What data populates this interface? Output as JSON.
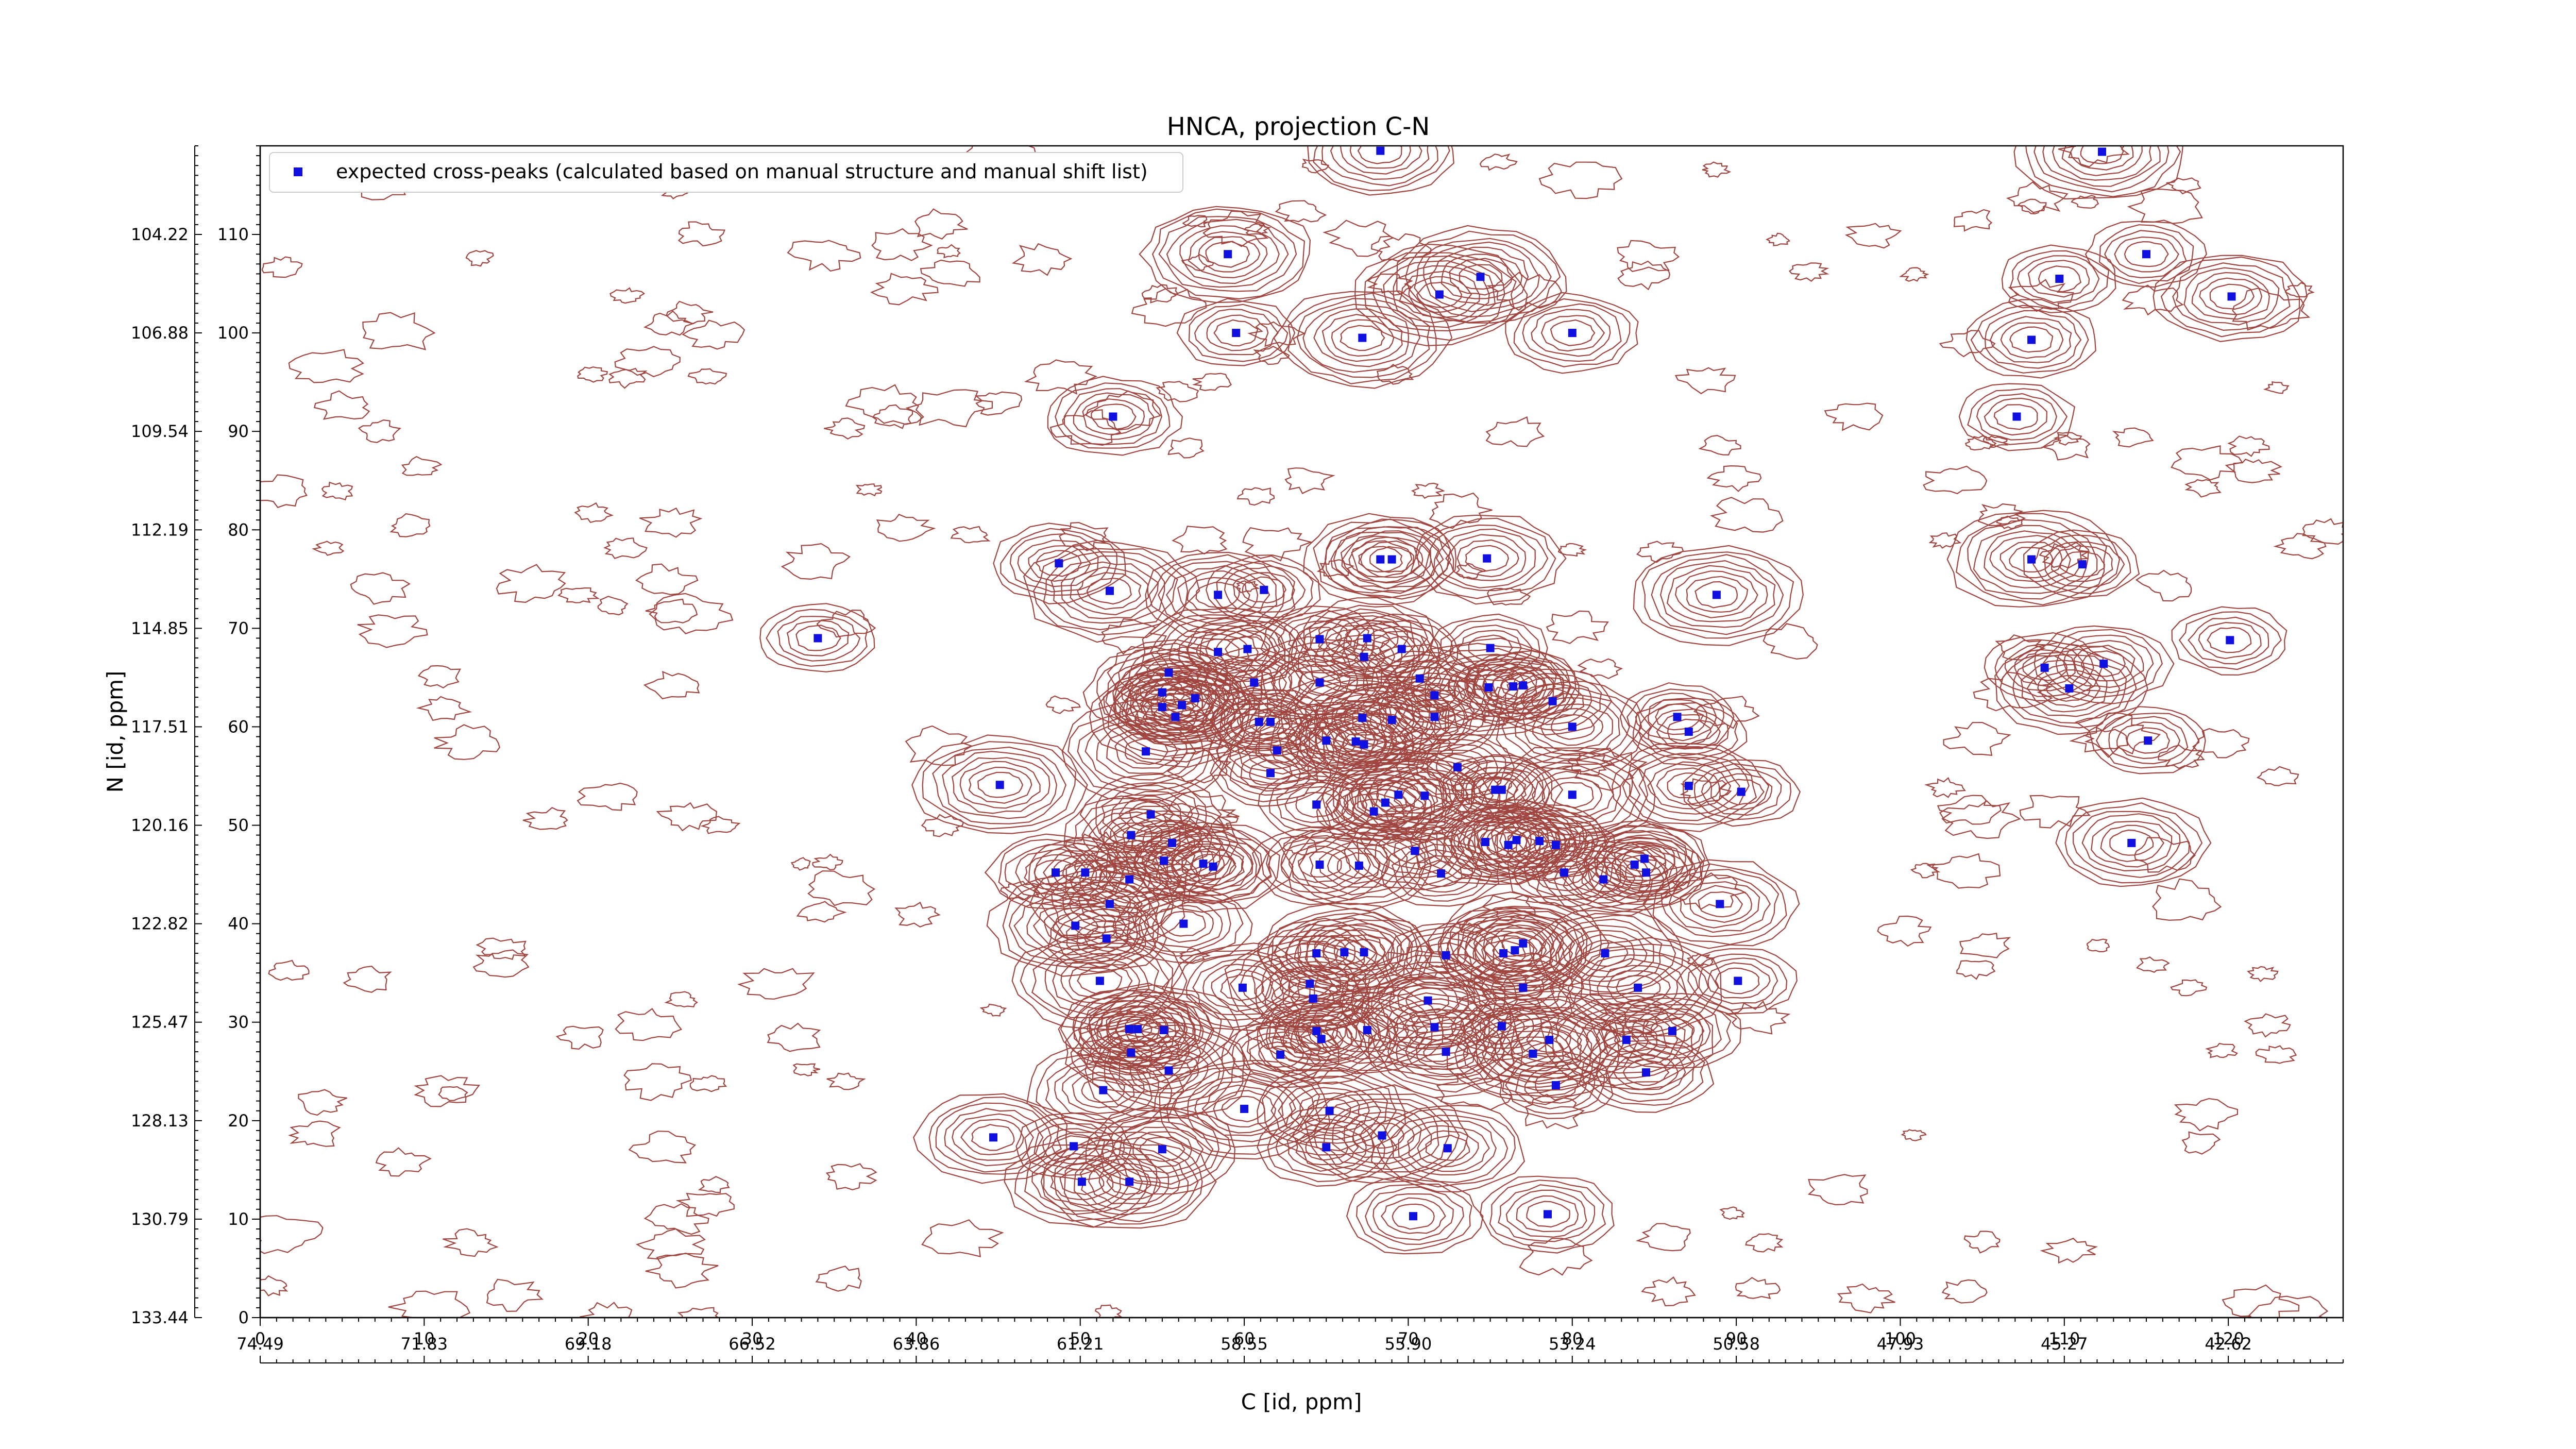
{
  "chart_data": {
    "type": "scatter",
    "title": "HNCA, projection C-N",
    "xlabel": "C [id, ppm]",
    "ylabel": "N [id, ppm]",
    "x_index_ticks": [
      0,
      10,
      20,
      30,
      40,
      50,
      60,
      70,
      80,
      90,
      100,
      110,
      120
    ],
    "x_ppm_ticks": [
      "74.49",
      "71.83",
      "69.18",
      "66.52",
      "63.86",
      "61.21",
      "58.55",
      "55.90",
      "53.24",
      "50.58",
      "47.93",
      "45.27",
      "42.62"
    ],
    "y_index_ticks": [
      0,
      10,
      20,
      30,
      40,
      50,
      60,
      70,
      80,
      90,
      100,
      110
    ],
    "y_ppm_ticks": [
      "133.44",
      "130.79",
      "128.13",
      "125.47",
      "122.82",
      "120.16",
      "117.51",
      "114.85",
      "112.19",
      "109.54",
      "106.88",
      "104.22"
    ],
    "xlim": [
      0,
      127
    ],
    "ylim": [
      0,
      119
    ],
    "legend": {
      "label": "expected cross-peaks (calculated based on manual structure and manual shift list)",
      "position": "upper-left",
      "marker_color": "#1010e0"
    },
    "contour_color": "#a0453f",
    "series": [
      {
        "name": "expected cross-peaks (calculated based on manual structure and manual shift list)",
        "points": [
          [
            68.3,
            118.5
          ],
          [
            112.3,
            118.4
          ],
          [
            59.0,
            108.0
          ],
          [
            74.4,
            105.7
          ],
          [
            71.9,
            103.9
          ],
          [
            109.7,
            105.5
          ],
          [
            115.0,
            108.0
          ],
          [
            120.2,
            103.7
          ],
          [
            59.5,
            100.0
          ],
          [
            67.2,
            99.5
          ],
          [
            80.0,
            100.0
          ],
          [
            108.0,
            99.3
          ],
          [
            52.0,
            91.5
          ],
          [
            107.1,
            91.5
          ],
          [
            48.7,
            76.6
          ],
          [
            51.8,
            73.8
          ],
          [
            58.4,
            73.4
          ],
          [
            61.2,
            73.9
          ],
          [
            68.3,
            77.0
          ],
          [
            69.0,
            77.0
          ],
          [
            74.8,
            77.1
          ],
          [
            88.8,
            73.4
          ],
          [
            108.0,
            77.0
          ],
          [
            111.1,
            76.5
          ],
          [
            34.0,
            69.0
          ],
          [
            120.1,
            68.8
          ],
          [
            58.4,
            67.6
          ],
          [
            60.2,
            67.9
          ],
          [
            64.6,
            68.9
          ],
          [
            67.5,
            69.0
          ],
          [
            67.3,
            67.1
          ],
          [
            69.6,
            67.9
          ],
          [
            75.0,
            68.0
          ],
          [
            55.4,
            65.5
          ],
          [
            60.6,
            64.5
          ],
          [
            55.0,
            63.5
          ],
          [
            64.6,
            64.5
          ],
          [
            70.7,
            64.9
          ],
          [
            74.9,
            64.0
          ],
          [
            76.4,
            64.1
          ],
          [
            77.0,
            64.2
          ],
          [
            56.2,
            62.2
          ],
          [
            57.0,
            62.9
          ],
          [
            60.9,
            60.5
          ],
          [
            61.6,
            60.5
          ],
          [
            67.2,
            60.9
          ],
          [
            69.0,
            60.7
          ],
          [
            71.6,
            63.2
          ],
          [
            71.6,
            61.0
          ],
          [
            78.8,
            62.6
          ],
          [
            80.0,
            60.0
          ],
          [
            55.0,
            62.0
          ],
          [
            55.8,
            61.0
          ],
          [
            108.8,
            66.0
          ],
          [
            110.3,
            63.9
          ],
          [
            112.4,
            66.4
          ],
          [
            86.4,
            61.0
          ],
          [
            87.1,
            59.5
          ],
          [
            115.1,
            58.6
          ],
          [
            54.0,
            57.5
          ],
          [
            62.0,
            57.6
          ],
          [
            61.6,
            55.3
          ],
          [
            65.0,
            58.6
          ],
          [
            66.8,
            58.5
          ],
          [
            67.3,
            58.2
          ],
          [
            45.1,
            54.1
          ],
          [
            71.0,
            53.0
          ],
          [
            73.0,
            55.9
          ],
          [
            75.3,
            53.6
          ],
          [
            75.7,
            53.6
          ],
          [
            80.0,
            53.1
          ],
          [
            87.1,
            54.0
          ],
          [
            90.3,
            53.4
          ],
          [
            54.3,
            51.1
          ],
          [
            64.4,
            52.1
          ],
          [
            68.6,
            52.3
          ],
          [
            69.4,
            53.1
          ],
          [
            67.9,
            51.4
          ],
          [
            55.6,
            48.2
          ],
          [
            53.1,
            49.0
          ],
          [
            74.7,
            48.3
          ],
          [
            76.1,
            48.0
          ],
          [
            76.6,
            48.5
          ],
          [
            78.0,
            48.4
          ],
          [
            79.0,
            48.0
          ],
          [
            83.8,
            46.0
          ],
          [
            114.1,
            48.2
          ],
          [
            70.4,
            47.4
          ],
          [
            48.5,
            45.2
          ],
          [
            50.3,
            45.2
          ],
          [
            55.1,
            46.4
          ],
          [
            57.5,
            46.1
          ],
          [
            58.1,
            45.8
          ],
          [
            64.6,
            46.0
          ],
          [
            67.0,
            45.9
          ],
          [
            72.0,
            45.1
          ],
          [
            79.5,
            45.2
          ],
          [
            81.9,
            44.5
          ],
          [
            84.5,
            45.2
          ],
          [
            84.4,
            46.6
          ],
          [
            53.0,
            44.5
          ],
          [
            51.8,
            42.0
          ],
          [
            89.0,
            42.0
          ],
          [
            49.7,
            39.8
          ],
          [
            56.3,
            40.0
          ],
          [
            51.6,
            38.5
          ],
          [
            64.4,
            37.0
          ],
          [
            66.1,
            37.1
          ],
          [
            67.3,
            37.1
          ],
          [
            72.3,
            36.8
          ],
          [
            75.8,
            37.0
          ],
          [
            76.5,
            37.3
          ],
          [
            77.0,
            38.0
          ],
          [
            82.0,
            37.0
          ],
          [
            51.2,
            34.2
          ],
          [
            59.9,
            33.5
          ],
          [
            64.0,
            33.9
          ],
          [
            64.2,
            32.4
          ],
          [
            71.2,
            32.2
          ],
          [
            77.0,
            33.5
          ],
          [
            84.0,
            33.5
          ],
          [
            90.1,
            34.2
          ],
          [
            53.0,
            29.3
          ],
          [
            53.5,
            29.3
          ],
          [
            53.1,
            26.9
          ],
          [
            55.1,
            29.2
          ],
          [
            64.4,
            29.1
          ],
          [
            67.5,
            29.2
          ],
          [
            71.6,
            29.5
          ],
          [
            72.3,
            27.0
          ],
          [
            75.7,
            29.6
          ],
          [
            77.6,
            26.8
          ],
          [
            78.6,
            28.2
          ],
          [
            83.3,
            28.2
          ],
          [
            86.1,
            29.1
          ],
          [
            62.2,
            26.7
          ],
          [
            64.7,
            28.3
          ],
          [
            55.4,
            25.1
          ],
          [
            51.4,
            23.1
          ],
          [
            79.0,
            23.6
          ],
          [
            84.5,
            24.9
          ],
          [
            60.0,
            21.2
          ],
          [
            65.2,
            21.0
          ],
          [
            68.4,
            18.5
          ],
          [
            44.7,
            18.3
          ],
          [
            49.6,
            17.4
          ],
          [
            55.0,
            17.1
          ],
          [
            65.0,
            17.3
          ],
          [
            72.4,
            17.2
          ],
          [
            50.1,
            13.8
          ],
          [
            53.0,
            13.8
          ],
          [
            70.3,
            10.3
          ],
          [
            78.5,
            10.5
          ]
        ]
      }
    ]
  }
}
